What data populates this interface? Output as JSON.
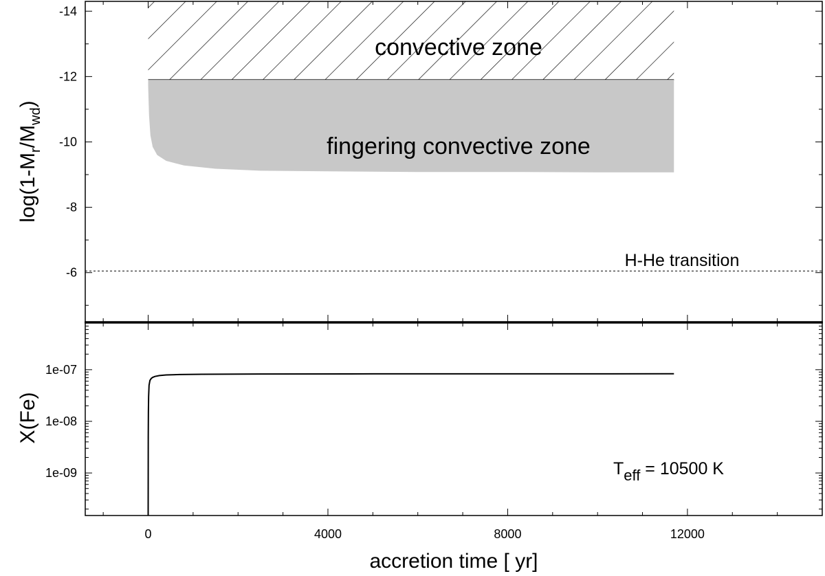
{
  "chart_data": [
    {
      "type": "area",
      "panel": "top",
      "ylabel_parts": {
        "main": "log(1-M",
        "sub1": "r",
        "mid": "/M",
        "sub2": "wd",
        "end": ")"
      },
      "ylim": [
        -4.5,
        -14.3
      ],
      "y_axis_inverted": true,
      "yticks": [
        -6,
        -8,
        -10,
        -12,
        -14
      ],
      "ytick_labels": [
        "-6",
        "-8",
        "-10",
        "-12",
        "-14"
      ],
      "convective_zone": {
        "label": "convective zone",
        "fill": "hatched",
        "x_range": [
          0,
          11700
        ],
        "y_range": [
          -11.9,
          -14.3
        ]
      },
      "fingering_zone": {
        "label": "fingering convective zone",
        "fill": "#c8c8c8",
        "top": -11.9,
        "bottom_curve": {
          "x": [
            0,
            20,
            50,
            100,
            200,
            400,
            800,
            1500,
            2500,
            4000,
            6000,
            8000,
            10000,
            11700
          ],
          "y": [
            -11.7,
            -10.8,
            -10.2,
            -9.85,
            -9.6,
            -9.42,
            -9.28,
            -9.18,
            -9.12,
            -9.1,
            -9.08,
            -9.08,
            -9.07,
            -9.07
          ]
        }
      },
      "transition": {
        "label": "H-He transition",
        "y": -6.05,
        "style": "dotted"
      }
    },
    {
      "type": "line",
      "panel": "bottom",
      "ylabel": "X(Fe)",
      "yscale": "log",
      "ylim": [
        1.5e-10,
        8e-07
      ],
      "yticks": [
        1e-09,
        1e-08,
        1e-07
      ],
      "ytick_labels": [
        "1e-09",
        "1e-08",
        "1e-07"
      ],
      "xlabel": "accretion time [ yr]",
      "xlim": [
        -1400,
        15000
      ],
      "xticks": [
        0,
        4000,
        8000,
        12000
      ],
      "xtick_labels": [
        "0",
        "4000",
        "8000",
        "12000"
      ],
      "series": [
        {
          "x": [
            0,
            2,
            5,
            10,
            20,
            40,
            70,
            100,
            150,
            250,
            400,
            700,
            1200,
            2500,
            5000,
            8000,
            11700
          ],
          "y": [
            1.5e-10,
            5e-09,
            1.5e-08,
            3e-08,
            5e-08,
            6.2e-08,
            6.8e-08,
            7.1e-08,
            7.4e-08,
            7.7e-08,
            7.9e-08,
            8.05e-08,
            8.15e-08,
            8.25e-08,
            8.3e-08,
            8.32e-08,
            8.33e-08
          ]
        }
      ],
      "annotation": {
        "main": "T",
        "sub": "eff",
        "rest": " = 10500 K"
      }
    }
  ],
  "colors": {
    "fingering_fill": "#c8c8c8",
    "line": "#000000"
  }
}
